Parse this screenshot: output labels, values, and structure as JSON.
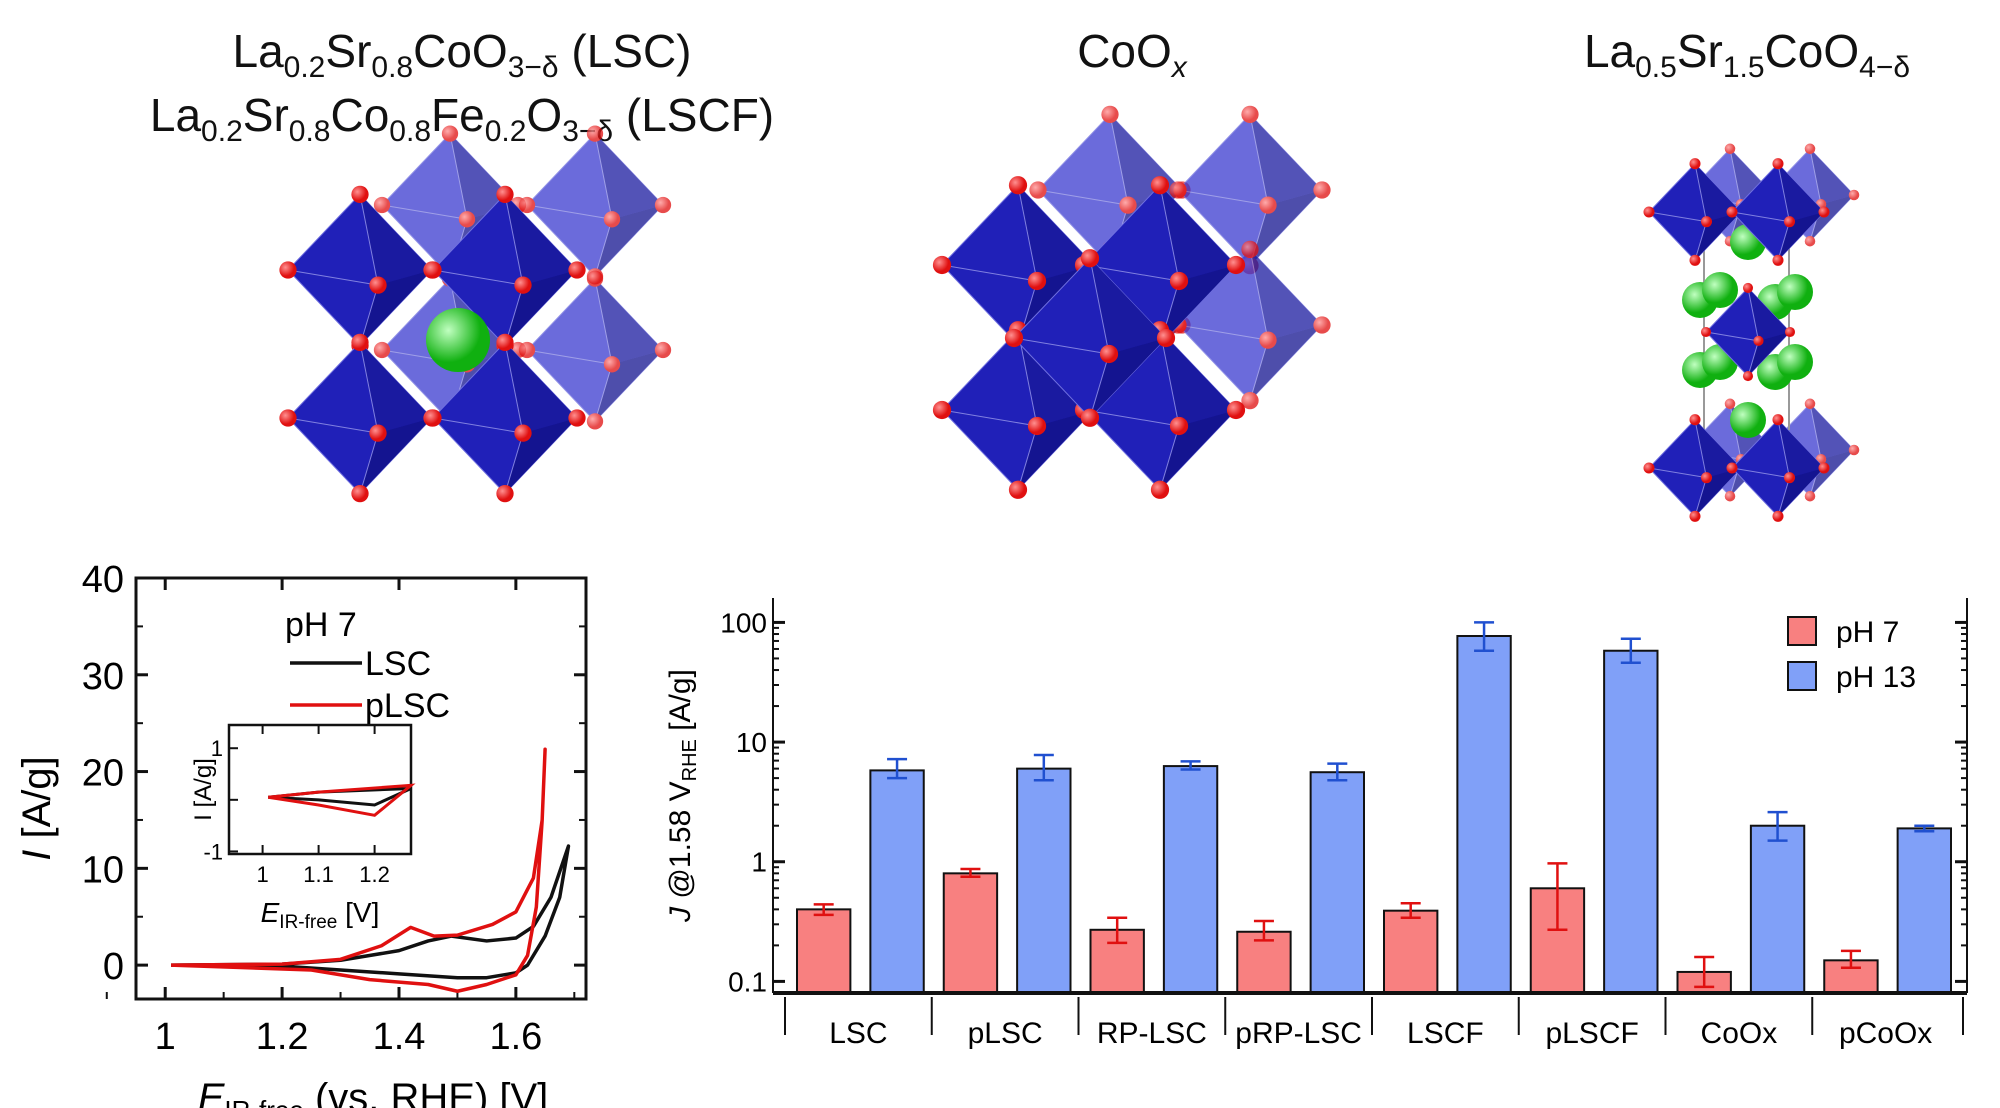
{
  "titles": {
    "lsc": {
      "parts": [
        [
          "La",
          ""
        ],
        [
          "0.2",
          "sub"
        ],
        [
          "Sr",
          ""
        ],
        [
          "0.8",
          "sub"
        ],
        [
          "CoO",
          ""
        ],
        [
          "3−δ",
          "sub"
        ],
        [
          " (LSC)",
          ""
        ]
      ]
    },
    "lscf": {
      "parts": [
        [
          "La",
          ""
        ],
        [
          "0.2",
          "sub"
        ],
        [
          "Sr",
          ""
        ],
        [
          "0.8",
          "sub"
        ],
        [
          "Co",
          ""
        ],
        [
          "0.8",
          "sub"
        ],
        [
          "Fe",
          ""
        ],
        [
          "0.2",
          "sub"
        ],
        [
          "O",
          ""
        ],
        [
          "3−δ",
          "sub"
        ],
        [
          "  (LSCF)",
          ""
        ]
      ]
    },
    "coox": {
      "parts": [
        [
          "CoO",
          ""
        ],
        [
          "x",
          "subi"
        ]
      ]
    },
    "rp": {
      "parts": [
        [
          "La",
          ""
        ],
        [
          "0.5",
          "sub"
        ],
        [
          "Sr",
          ""
        ],
        [
          "1.5",
          "sub"
        ],
        [
          "CoO",
          ""
        ],
        [
          "4−δ",
          "sub"
        ]
      ]
    }
  },
  "colors": {
    "octahedron": "#2020b8",
    "oxygen": "#e01010",
    "cation": "#30d030",
    "ph7": "#f88080",
    "ph13": "#80a0f8",
    "lsc_line": "#111111",
    "plsc_line": "#e01010",
    "ph7_err": "#e01010",
    "ph13_err": "#2050d0"
  },
  "chart_data": [
    {
      "type": "line",
      "xlabel": "E_IR-free (vs. RHE) [V]",
      "xlabel_main": "E",
      "xlabel_sub": "IR-free",
      "xlabel_rest": " (vs. RHE) [V]",
      "ylabel_main": "I",
      "ylabel_rest": " [A/g]",
      "xlim": [
        0.95,
        1.72
      ],
      "ylim": [
        -3.5,
        40
      ],
      "xticks": [
        "1",
        "1.2",
        "1.4",
        "1.6"
      ],
      "xtick_values": [
        1,
        1.2,
        1.4,
        1.6
      ],
      "yticks": [
        "0",
        "10",
        "20",
        "30",
        "40"
      ],
      "ytick_values": [
        0,
        10,
        20,
        30,
        40
      ],
      "legend_title": "pH 7",
      "series": [
        {
          "name": "LSC",
          "points": [
            [
              1.01,
              0
            ],
            [
              1.2,
              0.1
            ],
            [
              1.3,
              0.5
            ],
            [
              1.4,
              1.5
            ],
            [
              1.45,
              2.5
            ],
            [
              1.49,
              3.0
            ],
            [
              1.55,
              2.5
            ],
            [
              1.6,
              2.8
            ],
            [
              1.63,
              4
            ],
            [
              1.66,
              7
            ],
            [
              1.69,
              12.3
            ],
            [
              1.675,
              7
            ],
            [
              1.65,
              3
            ],
            [
              1.62,
              0
            ],
            [
              1.6,
              -0.8
            ],
            [
              1.55,
              -1.3
            ],
            [
              1.5,
              -1.3
            ],
            [
              1.4,
              -0.9
            ],
            [
              1.3,
              -0.5
            ],
            [
              1.2,
              -0.1
            ],
            [
              1.01,
              0
            ]
          ]
        },
        {
          "name": "pLSC",
          "points": [
            [
              1.01,
              0
            ],
            [
              1.2,
              0.1
            ],
            [
              1.3,
              0.6
            ],
            [
              1.37,
              2
            ],
            [
              1.42,
              3.9
            ],
            [
              1.46,
              3.0
            ],
            [
              1.5,
              3.1
            ],
            [
              1.56,
              4.2
            ],
            [
              1.6,
              5.5
            ],
            [
              1.63,
              9
            ],
            [
              1.645,
              15
            ],
            [
              1.65,
              22.3
            ],
            [
              1.645,
              15
            ],
            [
              1.635,
              6
            ],
            [
              1.62,
              1
            ],
            [
              1.6,
              -1
            ],
            [
              1.55,
              -2
            ],
            [
              1.5,
              -2.7
            ],
            [
              1.45,
              -2
            ],
            [
              1.35,
              -1.5
            ],
            [
              1.25,
              -0.5
            ],
            [
              1.01,
              0
            ]
          ]
        }
      ],
      "inset": {
        "xlabel_main": "E",
        "xlabel_sub": "IR-free",
        "xlabel_rest": " [V]",
        "ylabel": "I [A/g]",
        "xlim": [
          0.94,
          1.265
        ],
        "ylim": [
          -1.05,
          1.45
        ],
        "xticks": [
          "1",
          "1.1",
          "1.2"
        ],
        "xtick_values": [
          1,
          1.1,
          1.2
        ],
        "yticks": [
          "-1",
          "1"
        ],
        "ytick_values": [
          -1,
          1
        ],
        "series": [
          {
            "name": "LSC",
            "points": [
              [
                1.01,
                0.05
              ],
              [
                1.1,
                0.15
              ],
              [
                1.265,
                0.22
              ],
              [
                1.2,
                -0.1
              ],
              [
                1.1,
                0.0
              ],
              [
                1.01,
                0.05
              ]
            ]
          },
          {
            "name": "pLSC",
            "points": [
              [
                1.01,
                0.05
              ],
              [
                1.1,
                0.15
              ],
              [
                1.265,
                0.28
              ],
              [
                1.2,
                -0.3
              ],
              [
                1.1,
                -0.1
              ],
              [
                1.01,
                0.05
              ]
            ]
          }
        ]
      }
    },
    {
      "type": "bar",
      "ylabel_main": "J",
      "ylabel_mid": " @1.58 V",
      "ylabel_sub": "RHE",
      "ylabel_rest": " [A/g]",
      "yscale": "log",
      "ylim": [
        0.08,
        160
      ],
      "yticks": [
        "0.1",
        "1",
        "10",
        "100"
      ],
      "ytick_values": [
        0.1,
        1,
        10,
        100
      ],
      "legend_position": "top-right",
      "categories": [
        "LSC",
        "pLSC",
        "RP-LSC",
        "pRP-LSC",
        "LSCF",
        "pLSCF",
        "CoOx",
        "pCoOx"
      ],
      "series": [
        {
          "name": "pH 7",
          "values": [
            0.4,
            0.8,
            0.27,
            0.26,
            0.39,
            0.6,
            0.12,
            0.15
          ],
          "err_low": [
            0.36,
            0.75,
            0.21,
            0.22,
            0.34,
            0.27,
            0.09,
            0.13
          ],
          "err_high": [
            0.44,
            0.87,
            0.34,
            0.32,
            0.45,
            0.97,
            0.16,
            0.18
          ]
        },
        {
          "name": "pH 13",
          "values": [
            5.8,
            6.0,
            6.3,
            5.6,
            77,
            58,
            2.0,
            1.9
          ],
          "err_low": [
            5.0,
            4.8,
            5.9,
            4.8,
            58,
            46,
            1.5,
            1.8
          ],
          "err_high": [
            7.2,
            7.8,
            6.9,
            6.6,
            100,
            73,
            2.6,
            2.0
          ]
        }
      ]
    }
  ]
}
